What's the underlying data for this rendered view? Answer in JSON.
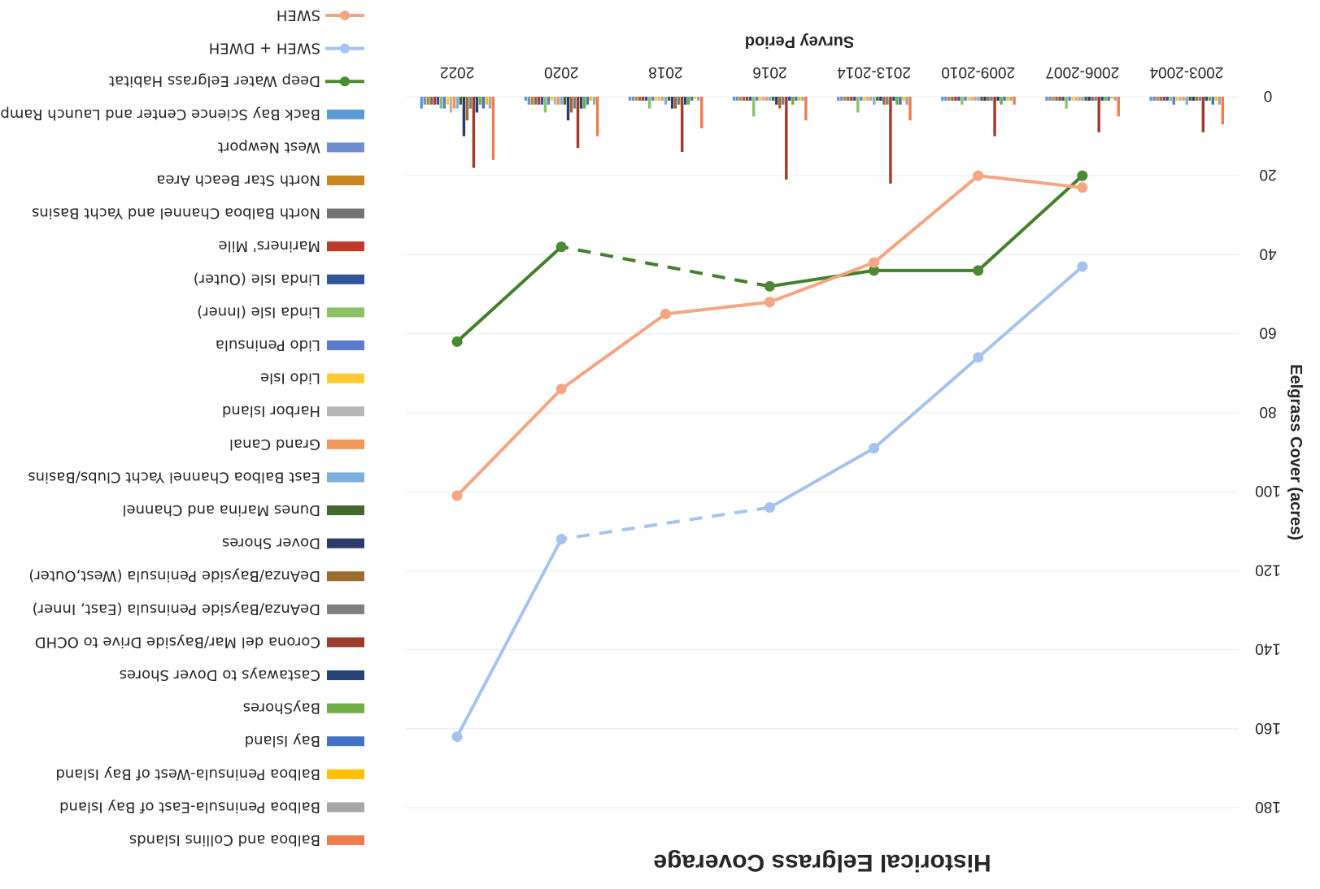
{
  "chart_data": {
    "type": "bar+line",
    "orientation": "rotated-180",
    "title": "Historical Eelgrass Coverage",
    "xlabel": "Survey Period",
    "ylabel": "Eelgrass Cover (acres)",
    "ylim": [
      0,
      180
    ],
    "yticks": [
      0,
      20,
      40,
      60,
      80,
      100,
      120,
      140,
      160,
      180
    ],
    "categories": [
      "2003-2004",
      "2006-2007",
      "2009-2010",
      "2013-2014",
      "2016",
      "2018",
      "2020",
      "2022"
    ],
    "grid": true,
    "legend_position": "left",
    "bar_series": [
      {
        "name": "Balboa and Collins Islands",
        "color": "#ed7d4f",
        "values": [
          7,
          5,
          2,
          6,
          6,
          8,
          10,
          16
        ]
      },
      {
        "name": "Balboa Peninsula-East of Bay Island",
        "color": "#a6a6a6",
        "values": [
          2,
          1,
          1,
          2,
          1,
          1,
          2,
          3
        ]
      },
      {
        "name": "Balboa Peninsula-West of Bay Island",
        "color": "#ffc000",
        "values": [
          1,
          0.5,
          1,
          1,
          1,
          0.5,
          1,
          2
        ]
      },
      {
        "name": "Bay Island",
        "color": "#4472c4",
        "values": [
          2,
          1,
          1,
          2,
          1,
          1,
          2,
          3
        ]
      },
      {
        "name": "BayShores",
        "color": "#70ad47",
        "values": [
          1,
          1,
          2,
          2,
          2,
          2,
          3,
          2
        ]
      },
      {
        "name": "Castaways to Dover Shores",
        "color": "#264478",
        "values": [
          1,
          1,
          1,
          1,
          1,
          2,
          3,
          4
        ]
      },
      {
        "name": "Corona del Mar/Bayside Drive to OCHD",
        "color": "#9e3b2c",
        "values": [
          9,
          9,
          10,
          22,
          21,
          14,
          13,
          18
        ]
      },
      {
        "name": "DeAnza/Bayside Peninsula (East, Inner)",
        "color": "#7f7f7f",
        "values": [
          1,
          1,
          1,
          2,
          2,
          2,
          3,
          3
        ]
      },
      {
        "name": "DeAnza/Bayside Peninsula (West,Outer)",
        "color": "#9e6c32",
        "values": [
          1,
          1,
          1,
          2,
          3,
          3,
          4,
          6
        ]
      },
      {
        "name": "Dover Shores",
        "color": "#2e3a6b",
        "values": [
          1,
          1,
          1,
          1,
          2,
          3,
          6,
          10
        ]
      },
      {
        "name": "Dunes Marina and Channel",
        "color": "#43682b",
        "values": [
          1,
          1,
          1,
          1,
          1,
          1,
          2,
          2
        ]
      },
      {
        "name": "East Balboa Channel Yacht Clubs/Basins",
        "color": "#7cafdd",
        "values": [
          2,
          1,
          1,
          2,
          1,
          2,
          2,
          3
        ]
      },
      {
        "name": "Grand Canal",
        "color": "#f1975a",
        "values": [
          1,
          1,
          1,
          1,
          1,
          1,
          2,
          3
        ]
      },
      {
        "name": "Harbor Island",
        "color": "#b7b7b7",
        "values": [
          1,
          1,
          1,
          1,
          1,
          1,
          2,
          4
        ]
      },
      {
        "name": "Lido Isle",
        "color": "#ffcd33",
        "values": [
          1,
          1,
          1,
          1,
          1,
          1,
          1,
          2
        ]
      },
      {
        "name": "Lido Peninsula",
        "color": "#5b7bcf",
        "values": [
          2,
          1,
          1,
          1,
          1,
          1,
          2,
          3
        ]
      },
      {
        "name": "Linda Isle (Inner)",
        "color": "#8cc168",
        "values": [
          1,
          3,
          2,
          4,
          5,
          3,
          4,
          3
        ]
      },
      {
        "name": "Linda Isle (Outer)",
        "color": "#2f5597",
        "values": [
          1,
          1,
          1,
          1,
          1,
          1,
          2,
          2
        ]
      },
      {
        "name": "Mariners' Mile",
        "color": "#c0392b",
        "values": [
          1,
          1,
          1,
          1,
          1,
          1,
          2,
          2
        ]
      },
      {
        "name": "North Balboa Channel and Yacht Basins",
        "color": "#737373",
        "values": [
          1,
          1,
          1,
          1,
          1,
          1,
          2,
          2
        ]
      },
      {
        "name": "North Star Beach Area",
        "color": "#c9861f",
        "values": [
          1,
          1,
          1,
          1,
          1,
          1,
          2,
          2
        ]
      },
      {
        "name": "West Newport",
        "color": "#6f8fd0",
        "values": [
          1,
          1,
          1,
          1,
          1,
          1,
          2,
          2
        ]
      },
      {
        "name": "Back Bay Science Center and Launch Ramp",
        "color": "#5b9bd5",
        "values": [
          1,
          1,
          1,
          1,
          1,
          1,
          1,
          3
        ]
      }
    ],
    "line_series": [
      {
        "name": "Deep Water Eelgrass Habitat",
        "color": "#43802b",
        "marker_color": "#4a8a33",
        "values": [
          null,
          20,
          44,
          44,
          48,
          null,
          38,
          62
        ],
        "dashed_segments": [
          [
            4,
            6
          ]
        ]
      },
      {
        "name": "SWEH + DWEH",
        "color": "#a5c3ee",
        "marker_color": "#a5c3ee",
        "values": [
          null,
          43,
          66,
          89,
          104,
          null,
          112,
          162
        ],
        "dashed_segments": [
          [
            4,
            6
          ]
        ]
      },
      {
        "name": "SWEH",
        "color": "#f4a582",
        "marker_color": "#f4a582",
        "values": [
          null,
          23,
          20,
          42,
          52,
          55,
          74,
          101
        ],
        "dashed_segments": []
      }
    ]
  }
}
